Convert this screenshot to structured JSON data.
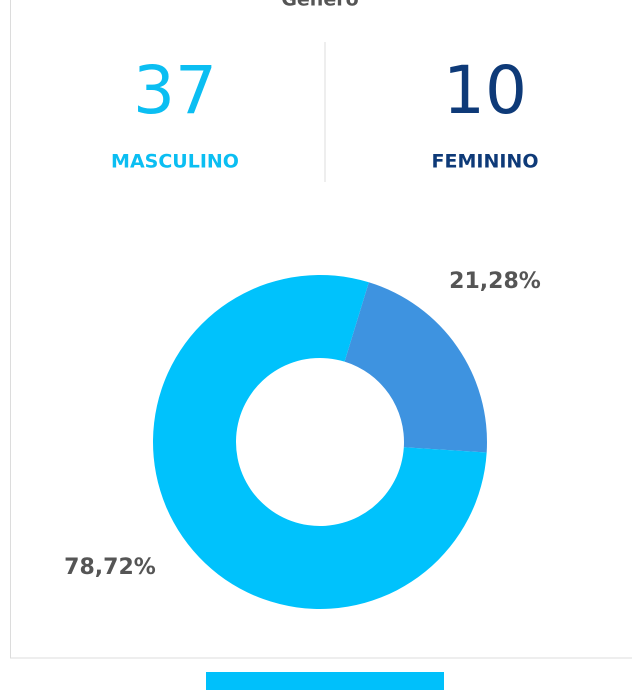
{
  "title": "Gênero",
  "stats": [
    {
      "value": 37,
      "label": "MASCULINO",
      "color": "#0bbef2"
    },
    {
      "value": 10,
      "label": "FEMININO",
      "color": "#0e3a78"
    }
  ],
  "chart_data": {
    "type": "donut",
    "values": [
      21.28,
      78.72
    ],
    "value_labels": [
      "21,28%",
      "78,72%"
    ],
    "colors": [
      "#3e93e0",
      "#00c2fc"
    ]
  }
}
